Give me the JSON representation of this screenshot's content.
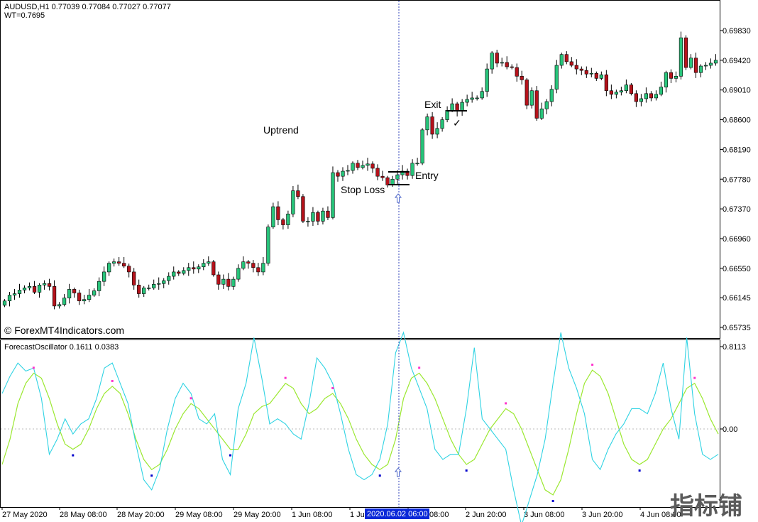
{
  "main_header": {
    "symbol_line": "AUDUSD,H1  0.77039 0.77084 0.77027 0.77077",
    "wt_line": "WT=0.7695"
  },
  "annotations": {
    "uptrend": "Uptrend",
    "exit": "Exit",
    "entry": "Entry",
    "stop_loss": "Stop Loss",
    "checkmark": "✓",
    "copyright": "© ForexMT4Indicators.com"
  },
  "indicator_header": "ForecastOscillator 0.1611 0.0383",
  "x_highlight_label": "2020.06.02 06:00",
  "watermark": "指标铺",
  "colors": {
    "bull": "#27c47a",
    "bear": "#b5121b",
    "oscillator": "#2fd3e3",
    "signal": "#9be830",
    "dot_top": "#ff33cc",
    "dot_bottom": "#0000cc",
    "crosshair": "#3344bb",
    "highlight_bg": "#0a28d8"
  },
  "chart_data": [
    {
      "type": "candlestick",
      "title": "AUDUSD,H1",
      "y_ticks": [
        "0.69830",
        "0.69420",
        "0.69010",
        "0.68600",
        "0.68190",
        "0.67780",
        "0.67370",
        "0.66960",
        "0.66550",
        "0.66145",
        "0.65735"
      ],
      "ylim": [
        0.65735,
        0.6983
      ],
      "x_ticks": [
        "27 May 2020",
        "28 May 08:00",
        "28 May 20:00",
        "29 May 08:00",
        "29 May 20:00",
        "1 Jun 08:00",
        "1 Jun 20:00",
        "2 Jun 08:00",
        "2 Jun 20:00",
        "3 Jun 08:00",
        "3 Jun 20:00",
        "4 Jun 08:00"
      ],
      "close": [
        0.661,
        0.6618,
        0.662,
        0.6625,
        0.6628,
        0.663,
        0.6622,
        0.6632,
        0.6634,
        0.663,
        0.6603,
        0.6605,
        0.6614,
        0.6626,
        0.6621,
        0.661,
        0.6612,
        0.6618,
        0.6624,
        0.6637,
        0.665,
        0.6662,
        0.6664,
        0.6662,
        0.6658,
        0.665,
        0.6632,
        0.662,
        0.6628,
        0.6628,
        0.6633,
        0.6634,
        0.6638,
        0.6644,
        0.665,
        0.6648,
        0.6652,
        0.6656,
        0.6654,
        0.6657,
        0.6662,
        0.6664,
        0.6646,
        0.6633,
        0.664,
        0.663,
        0.664,
        0.6655,
        0.6664,
        0.6662,
        0.6656,
        0.665,
        0.6662,
        0.6712,
        0.674,
        0.6722,
        0.6715,
        0.673,
        0.6762,
        0.6754,
        0.672,
        0.672,
        0.6732,
        0.672,
        0.6734,
        0.6725,
        0.6787,
        0.6782,
        0.6789,
        0.679,
        0.68,
        0.6794,
        0.6797,
        0.6799,
        0.6793,
        0.6782,
        0.678,
        0.677,
        0.6778,
        0.6784,
        0.6789,
        0.6783,
        0.68,
        0.68,
        0.6846,
        0.6864,
        0.684,
        0.6848,
        0.686,
        0.6873,
        0.6882,
        0.6872,
        0.6884,
        0.6888,
        0.689,
        0.689,
        0.6899,
        0.693,
        0.6952,
        0.6938,
        0.6939,
        0.6933,
        0.6932,
        0.692,
        0.6915,
        0.688,
        0.69,
        0.6862,
        0.6875,
        0.6885,
        0.6902,
        0.6935,
        0.695,
        0.694,
        0.6935,
        0.693,
        0.6928,
        0.6923,
        0.6924,
        0.6917,
        0.6922,
        0.69,
        0.6895,
        0.6898,
        0.69,
        0.6908,
        0.6896,
        0.6885,
        0.6889,
        0.6896,
        0.689,
        0.6895,
        0.6905,
        0.6925,
        0.6917,
        0.692,
        0.6973,
        0.6932,
        0.6945,
        0.6925,
        0.6934,
        0.6935,
        0.6938,
        0.6942
      ],
      "series_names": [
        "bull",
        "bear"
      ]
    },
    {
      "type": "line",
      "title": "ForecastOscillator",
      "y_ticks": [
        "0.8113",
        "0.00"
      ],
      "series": [
        {
          "name": "ForecastOscillator",
          "values": [
            0.35,
            0.52,
            0.65,
            0.57,
            0.6,
            0.3,
            -0.25,
            -0.1,
            0.1,
            -0.05,
            0.05,
            0.1,
            0.3,
            0.6,
            0.65,
            0.45,
            0.25,
            -0.15,
            -0.5,
            -0.6,
            -0.4,
            0.0,
            0.3,
            0.45,
            0.35,
            0.1,
            0.05,
            0.15,
            -0.3,
            -0.45,
            0.2,
            0.45,
            0.9,
            0.5,
            0.05,
            0.1,
            0.05,
            -0.05,
            -0.1,
            0.25,
            0.7,
            0.6,
            0.45,
            0.15,
            -0.2,
            -0.45,
            -0.5,
            -0.45,
            -0.3,
            0.05,
            0.75,
            0.95,
            0.6,
            0.4,
            0.2,
            -0.2,
            -0.3,
            -0.25,
            -0.25,
            0.2,
            0.8,
            0.1,
            0.0,
            -0.1,
            -0.2,
            -0.6,
            -0.95,
            -0.7,
            -0.45,
            -0.1,
            0.45,
            0.95,
            0.6,
            0.4,
            0.15,
            -0.3,
            -0.4,
            -0.2,
            -0.05,
            0.05,
            0.2,
            0.2,
            0.15,
            0.35,
            0.65,
            0.2,
            -0.1,
            0.9,
            0.15,
            -0.25,
            -0.3,
            -0.25
          ]
        },
        {
          "name": "Signal",
          "values": [
            -0.35,
            -0.1,
            0.25,
            0.45,
            0.55,
            0.5,
            0.3,
            0.05,
            -0.15,
            -0.2,
            -0.15,
            0.0,
            0.2,
            0.35,
            0.42,
            0.35,
            0.15,
            -0.1,
            -0.3,
            -0.4,
            -0.35,
            -0.2,
            0.0,
            0.15,
            0.25,
            0.2,
            0.1,
            0.0,
            -0.1,
            -0.2,
            -0.2,
            -0.05,
            0.15,
            0.22,
            0.25,
            0.35,
            0.45,
            0.4,
            0.25,
            0.15,
            0.2,
            0.3,
            0.35,
            0.25,
            0.1,
            -0.1,
            -0.25,
            -0.35,
            -0.4,
            -0.35,
            -0.1,
            0.3,
            0.5,
            0.55,
            0.45,
            0.3,
            0.1,
            -0.1,
            -0.25,
            -0.35,
            -0.3,
            -0.15,
            0.0,
            0.1,
            0.2,
            0.15,
            0.0,
            -0.2,
            -0.4,
            -0.6,
            -0.65,
            -0.5,
            -0.2,
            0.15,
            0.45,
            0.58,
            0.52,
            0.35,
            0.1,
            -0.15,
            -0.3,
            -0.35,
            -0.3,
            -0.15,
            0.0,
            0.1,
            0.25,
            0.4,
            0.45,
            0.3,
            0.1,
            -0.05
          ]
        }
      ]
    }
  ]
}
